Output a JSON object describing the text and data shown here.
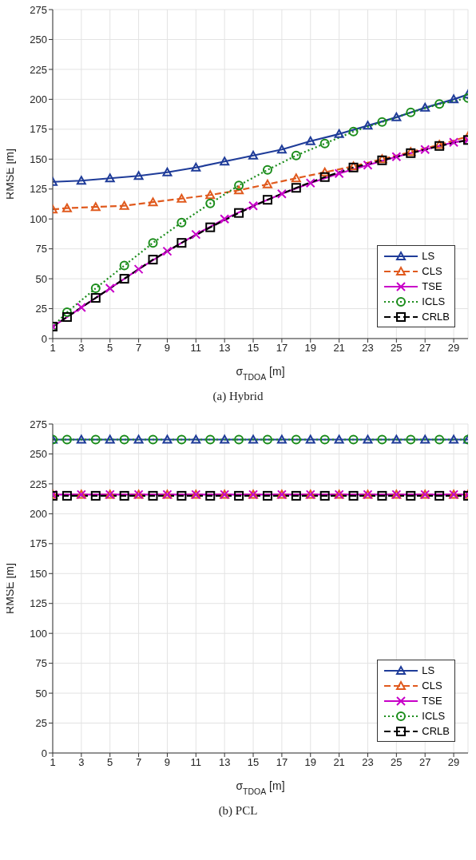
{
  "chart_data": [
    {
      "type": "line",
      "title": "(a)  Hybrid",
      "xlabel": "σ$_{TDOA}$ [m]",
      "ylabel": "RMSE [m]",
      "xlim": [
        1,
        30
      ],
      "xticks": [
        1,
        3,
        5,
        7,
        9,
        11,
        13,
        15,
        17,
        19,
        21,
        23,
        25,
        27,
        29
      ],
      "ylim": [
        0,
        275
      ],
      "yticks": [
        0,
        25,
        50,
        75,
        100,
        125,
        150,
        175,
        200,
        225,
        250,
        275
      ],
      "grid": true,
      "legend": "bottom right",
      "series": [
        {
          "name": "LS",
          "color": "#1f3c99",
          "marker": "triangle",
          "line_style": "solid",
          "x": [
            1,
            3,
            5,
            7,
            9,
            11,
            13,
            15,
            17,
            19,
            21,
            23,
            25,
            27,
            29,
            30
          ],
          "values": [
            131,
            132,
            134,
            136,
            139,
            143,
            148,
            153,
            158,
            165,
            171,
            178,
            185,
            193,
            200,
            204
          ]
        },
        {
          "name": "CLS",
          "color": "#e05a1e",
          "marker": "triangle",
          "line_style": "dashed",
          "x": [
            1,
            2,
            4,
            6,
            8,
            10,
            12,
            14,
            16,
            18,
            20,
            22,
            24,
            26,
            28,
            30
          ],
          "values": [
            108,
            109,
            110,
            111,
            114,
            117,
            120,
            124,
            129,
            134,
            139,
            144,
            150,
            156,
            162,
            169
          ]
        },
        {
          "name": "TSE",
          "color": "#c800c8",
          "marker": "cross",
          "line_style": "solid",
          "x": [
            1,
            3,
            5,
            7,
            9,
            11,
            13,
            15,
            17,
            19,
            21,
            23,
            25,
            27,
            29,
            30
          ],
          "values": [
            10,
            26,
            42,
            58,
            73,
            87,
            100,
            111,
            121,
            130,
            138,
            145,
            152,
            158,
            164,
            166
          ]
        },
        {
          "name": "ICLS",
          "color": "#1a8c1a",
          "marker": "circle",
          "line_style": "dotted",
          "x": [
            1,
            2,
            4,
            6,
            8,
            10,
            12,
            14,
            16,
            18,
            20,
            22,
            24,
            26,
            28,
            30
          ],
          "values": [
            10,
            22,
            42,
            61,
            80,
            97,
            113,
            128,
            141,
            153,
            163,
            173,
            181,
            189,
            196,
            201
          ]
        },
        {
          "name": "CRLB",
          "color": "#000000",
          "marker": "square",
          "line_style": "dashed",
          "x": [
            1,
            2,
            4,
            6,
            8,
            10,
            12,
            14,
            16,
            18,
            20,
            22,
            24,
            26,
            28,
            30
          ],
          "values": [
            10,
            18,
            34,
            50,
            66,
            80,
            93,
            105,
            116,
            126,
            135,
            143,
            149,
            155,
            161,
            166
          ]
        }
      ]
    },
    {
      "type": "line",
      "title": "(b) PCL",
      "xlabel": "σ$_{TDOA}$ [m]",
      "ylabel": "RMSE [m]",
      "xlim": [
        1,
        30
      ],
      "xticks": [
        1,
        3,
        5,
        7,
        9,
        11,
        13,
        15,
        17,
        19,
        21,
        23,
        25,
        27,
        29
      ],
      "ylim": [
        0,
        275
      ],
      "yticks": [
        0,
        25,
        50,
        75,
        100,
        125,
        150,
        175,
        200,
        225,
        250,
        275
      ],
      "grid": true,
      "legend": "bottom right",
      "series": [
        {
          "name": "LS",
          "color": "#1f3c99",
          "marker": "triangle",
          "line_style": "solid",
          "x": [
            1,
            3,
            5,
            7,
            9,
            11,
            13,
            15,
            17,
            19,
            21,
            23,
            25,
            27,
            29,
            30
          ],
          "values": [
            262,
            262,
            262,
            262,
            262,
            262,
            262,
            262,
            262,
            262,
            262,
            262,
            262,
            262,
            262,
            262
          ]
        },
        {
          "name": "CLS",
          "color": "#e05a1e",
          "marker": "triangle",
          "line_style": "dashed",
          "x": [
            1,
            3,
            5,
            7,
            9,
            11,
            13,
            15,
            17,
            19,
            21,
            23,
            25,
            27,
            29,
            30
          ],
          "values": [
            216,
            216,
            216,
            216,
            216,
            216,
            216,
            216,
            216,
            216,
            216,
            216,
            216,
            216,
            216,
            216
          ]
        },
        {
          "name": "TSE",
          "color": "#c800c8",
          "marker": "cross",
          "line_style": "solid",
          "x": [
            1,
            3,
            5,
            7,
            9,
            11,
            13,
            15,
            17,
            19,
            21,
            23,
            25,
            27,
            29,
            30
          ],
          "values": [
            216,
            216,
            216,
            216,
            216,
            216,
            216,
            216,
            216,
            216,
            216,
            216,
            216,
            216,
            216,
            216
          ]
        },
        {
          "name": "ICLS",
          "color": "#1a8c1a",
          "marker": "circle",
          "line_style": "dotted",
          "x": [
            1,
            2,
            4,
            6,
            8,
            10,
            12,
            14,
            16,
            18,
            20,
            22,
            24,
            26,
            28,
            30
          ],
          "values": [
            262,
            262,
            262,
            262,
            262,
            262,
            262,
            262,
            262,
            262,
            262,
            262,
            262,
            262,
            262,
            262
          ]
        },
        {
          "name": "CRLB",
          "color": "#000000",
          "marker": "square",
          "line_style": "dashed",
          "x": [
            1,
            2,
            4,
            6,
            8,
            10,
            12,
            14,
            16,
            18,
            20,
            22,
            24,
            26,
            28,
            30
          ],
          "values": [
            215,
            215,
            215,
            215,
            215,
            215,
            215,
            215,
            215,
            215,
            215,
            215,
            215,
            215,
            215,
            215
          ]
        }
      ]
    }
  ]
}
